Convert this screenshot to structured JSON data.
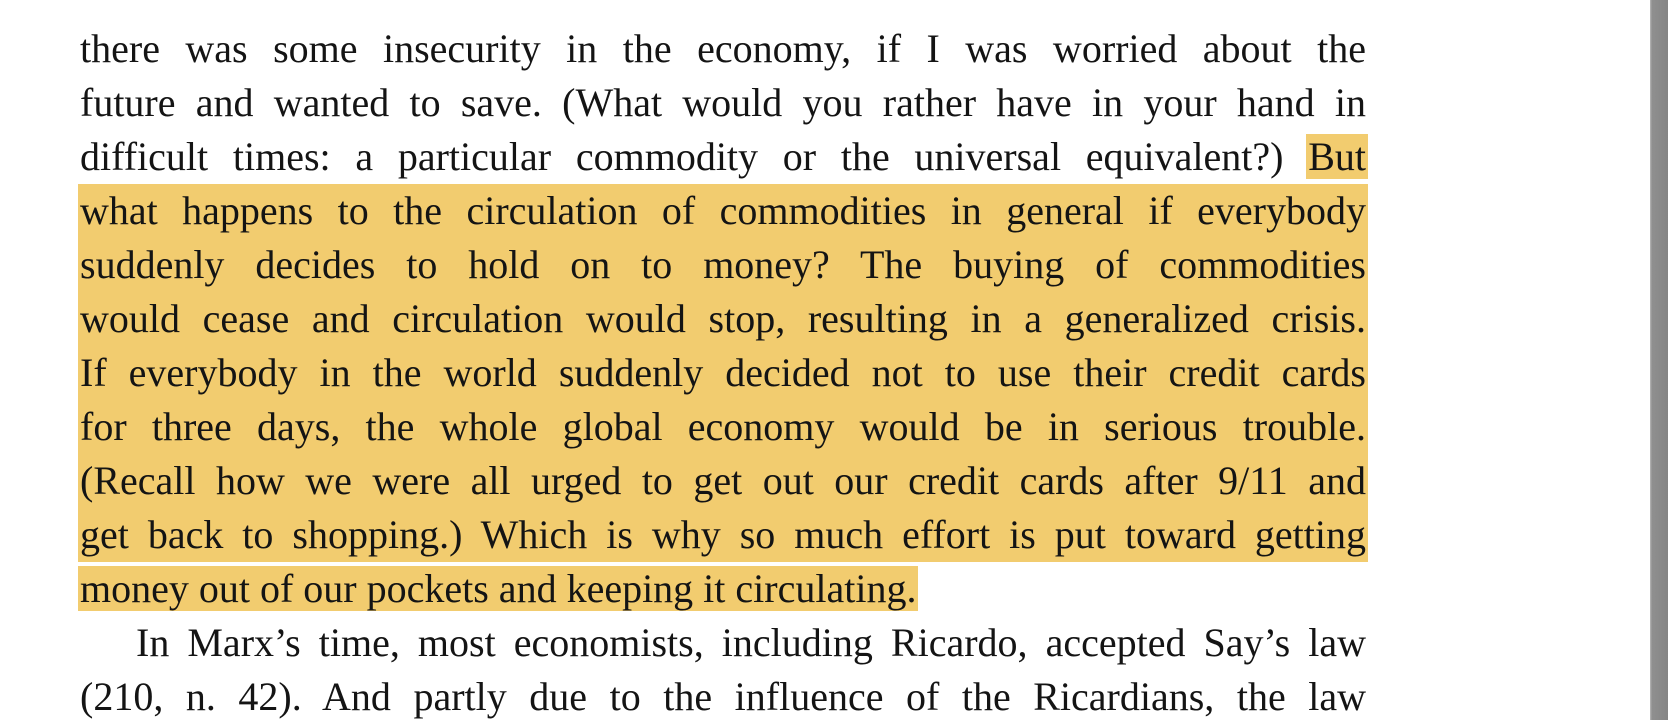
{
  "document": {
    "lines": [
      {
        "text": "there was some insecurity in the economy, if I was worried about the"
      },
      {
        "text": "future and wanted to save. (What would you rather have in your hand in"
      },
      {
        "pre": "difficult times: a particular commodity or the universal equivalent?) ",
        "highlight": "But"
      },
      {
        "highlight": "what happens to the circulation of commodities in general if everybody"
      },
      {
        "highlight": "suddenly decides to hold on to money? The buying of commodities"
      },
      {
        "highlight": "would cease and circulation would stop, resulting in a generalized crisis."
      },
      {
        "highlight": "If everybody in the world suddenly decided not to use their credit cards"
      },
      {
        "highlight": "for three days, the whole global economy would be in serious trouble."
      },
      {
        "highlight": "(Recall how we were all urged to get out our credit cards after 9/11 and"
      },
      {
        "highlight": "get back to shopping.) Which is why so much effort is put toward getting"
      },
      {
        "highlight": "money out of our pockets and keeping it circulating."
      },
      {
        "text": "In Marx’s time, most economists, including Ricardo, accepted Say’s law"
      },
      {
        "text": "(210, n. 42). And partly due to the influence of the Ricardians, the law"
      }
    ]
  },
  "colors": {
    "highlight": "#f2cc6f",
    "text": "#141414",
    "page": "#ffffff",
    "scrollbar": "#8f8f8f"
  }
}
